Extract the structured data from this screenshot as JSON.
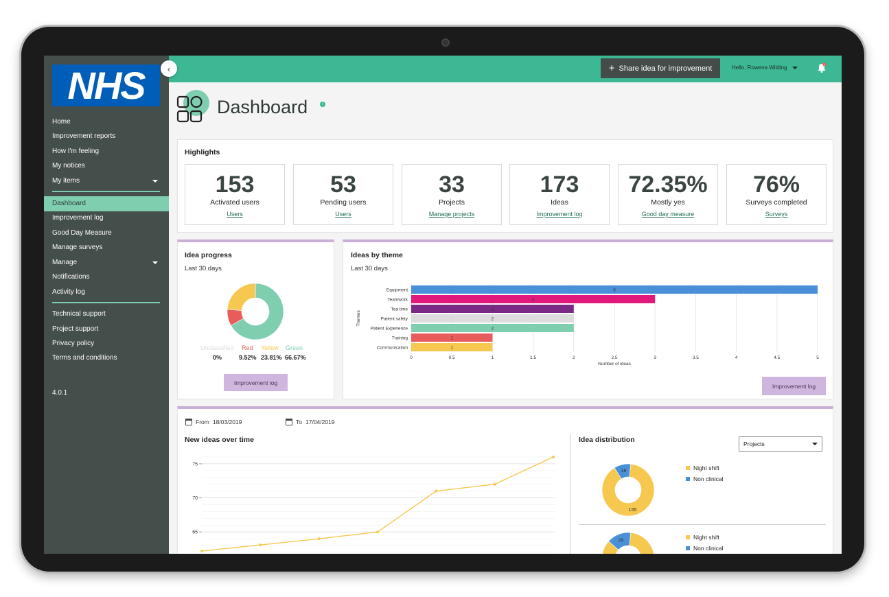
{
  "brand": {
    "logo_text": "NHS"
  },
  "sidebar": {
    "collapse_glyph": "‹",
    "items": [
      {
        "label": "Home"
      },
      {
        "label": "Improvement reports"
      },
      {
        "label": "How I'm feeling"
      },
      {
        "label": "My notices"
      },
      {
        "label": "My items"
      },
      {
        "label": "Dashboard"
      },
      {
        "label": "Improvement log"
      },
      {
        "label": "Good Day Measure"
      },
      {
        "label": "Manage surveys"
      },
      {
        "label": "Manage"
      },
      {
        "label": "Notifications"
      },
      {
        "label": "Activity log"
      },
      {
        "label": "Technical support"
      },
      {
        "label": "Project support"
      },
      {
        "label": "Privacy policy"
      },
      {
        "label": "Terms and conditions"
      }
    ],
    "active_item": "Dashboard",
    "version": "4.0.1"
  },
  "topbar": {
    "share_label": "Share idea for improvement",
    "user_label": "Hello, Rowena Wilding",
    "notification_count": "1"
  },
  "page": {
    "title": "Dashboard",
    "info_glyph": "i"
  },
  "highlights": {
    "title": "Highlights",
    "cards": [
      {
        "value": "153",
        "label": "Activated users",
        "link": "Users"
      },
      {
        "value": "53",
        "label": "Pending users",
        "link": "Users"
      },
      {
        "value": "33",
        "label": "Projects",
        "link": "Manage projects"
      },
      {
        "value": "173",
        "label": "Ideas",
        "link": "Improvement log"
      },
      {
        "value": "72.35%",
        "label": "Mostly yes",
        "link": "Good day measure"
      },
      {
        "value": "76%",
        "label": "Surveys completed",
        "link": "Surveys"
      }
    ]
  },
  "idea_progress": {
    "title": "Idea progress",
    "subtitle": "Last 30 days",
    "button": "Improvement log",
    "chart_data": {
      "type": "pie",
      "slices": [
        {
          "name": "Unclassified",
          "value": 0,
          "label": "0%",
          "color": "#dddddd"
        },
        {
          "name": "Red",
          "value": 9.52,
          "label": "9.52%",
          "color": "#e85c5c"
        },
        {
          "name": "Yellow",
          "value": 23.81,
          "label": "23.81%",
          "color": "#f7c84f"
        },
        {
          "name": "Green",
          "value": 66.67,
          "label": "66.67%",
          "color": "#7fceb0"
        }
      ]
    }
  },
  "ideas_by_theme": {
    "title": "Ideas by theme",
    "subtitle": "Last 30 days",
    "button": "Improvement log",
    "chart_data": {
      "type": "bar",
      "orientation": "horizontal",
      "categories": [
        "Equipment",
        "Teamwork",
        "Tea time",
        "Patient safety",
        "Patient Experience",
        "Training",
        "Communication"
      ],
      "values": [
        5,
        3,
        2,
        2,
        2,
        1,
        1
      ],
      "colors": [
        "#4a90d9",
        "#e0197a",
        "#7a2a85",
        "#dcdcdc",
        "#7fceb0",
        "#e85c5c",
        "#f7c84f"
      ],
      "xlabel": "Number of ideas",
      "ylabel": "Themes",
      "xlim": [
        0,
        5
      ],
      "xticks": [
        "0",
        "0.5",
        "1",
        "1.5",
        "2",
        "2.5",
        "3",
        "3.5",
        "4",
        "4.5",
        "5"
      ],
      "grid": true
    }
  },
  "filters": {
    "from_label": "From",
    "from_date": "18/03/2019",
    "to_label": "To",
    "to_date": "17/04/2019"
  },
  "new_ideas": {
    "title": "New ideas over time",
    "chart_data": {
      "type": "line",
      "y_ticks": [
        "75",
        "70",
        "65"
      ],
      "ylim": [
        62,
        76.5
      ],
      "values": [
        62.2,
        63.1,
        64.0,
        65.0,
        71.0,
        72.0,
        76.0
      ],
      "color": "#f7c84f",
      "grid": true
    }
  },
  "idea_distribution": {
    "title": "Idea distribution",
    "select_value": "Projects",
    "charts": [
      {
        "chart_data": {
          "type": "pie",
          "slices": [
            {
              "name": "Night shift",
              "value": 155,
              "label": "155",
              "color": "#f7c84f"
            },
            {
              "name": "Non clinical",
              "value": 18,
              "label": "18",
              "color": "#4a90d9"
            }
          ]
        },
        "legend": [
          "Night shift",
          "Non clinical"
        ]
      },
      {
        "chart_data": {
          "type": "pie",
          "slices": [
            {
              "name": "Night shift",
              "value": 147,
              "label": "",
              "color": "#f7c84f"
            },
            {
              "name": "Non clinical",
              "value": 26,
              "label": "26",
              "color": "#4a90d9"
            }
          ]
        },
        "legend": [
          "Night shift",
          "Non clinical"
        ]
      }
    ]
  }
}
